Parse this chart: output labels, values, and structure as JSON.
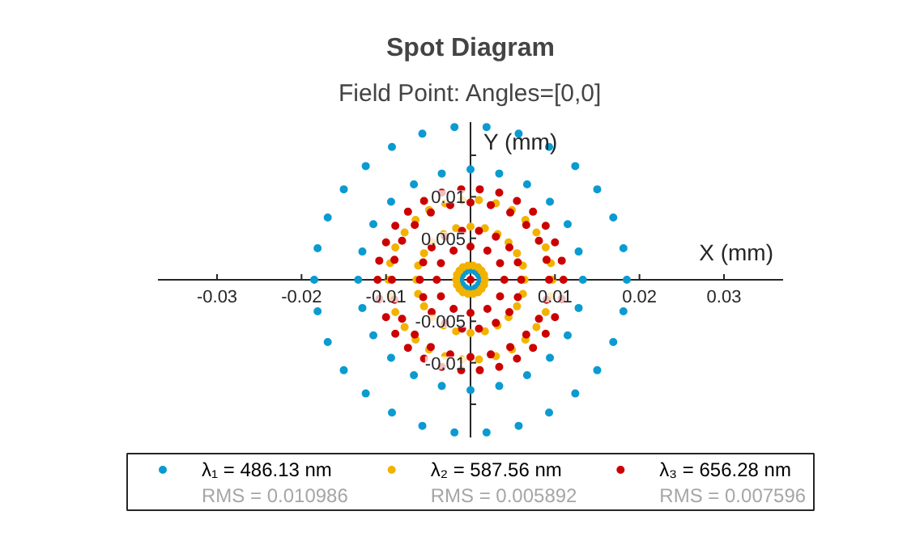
{
  "chart_data": {
    "type": "scatter",
    "title": "Spot Diagram",
    "subtitle": "Field Point: Angles=[0,0]",
    "xlabel": "X (mm)",
    "ylabel": "Y (mm)",
    "marker": "circle",
    "legend": "bottom",
    "xlim": [
      -0.037,
      0.037
    ],
    "ylim": [
      -0.019,
      0.019
    ],
    "xticks": [
      -0.03,
      -0.02,
      -0.01,
      0.01,
      0.02,
      0.03
    ],
    "yticks": [
      {
        "value": -0.015,
        "label": null
      },
      -0.01,
      -0.005,
      0.005,
      0.01,
      {
        "value": 0.015,
        "label": null
      }
    ],
    "annotations": [
      "RMS = 0.010986",
      "RMS = 0.005892",
      "RMS = 0.007596"
    ],
    "series": [
      {
        "name": "λ₁ = 486.13 nm",
        "color": "#0b9bd0",
        "x": [
          0.0185,
          0.0181,
          0.0169,
          0.015,
          0.0124,
          0.0093,
          0.0057,
          0.0019,
          -0.0019,
          -0.0057,
          -0.0093,
          -0.0124,
          -0.015,
          -0.0169,
          -0.0181,
          -0.0185,
          -0.0181,
          -0.0169,
          -0.015,
          -0.0124,
          -0.0093,
          -0.0057,
          -0.0019,
          0.0019,
          0.0057,
          0.0093,
          0.0124,
          0.015,
          0.0169,
          0.0181,
          0.0133,
          0.0128,
          0.0115,
          0.0094,
          0.0067,
          0.0034,
          0,
          -0.0034,
          -0.0067,
          -0.0094,
          -0.0115,
          -0.0128,
          -0.0133,
          -0.0128,
          -0.0115,
          -0.0094,
          -0.0067,
          -0.0034,
          0,
          0.0034,
          0.0067,
          0.0094,
          0.0115,
          0.0128,
          0.0012,
          0.001,
          0.0006,
          0,
          -0.0006,
          -0.001,
          -0.0012,
          -0.001,
          -0.0006,
          0,
          0.0006,
          0.001
        ],
        "values": [
          0,
          0.0038,
          0.0075,
          0.0109,
          0.0137,
          0.016,
          0.0176,
          0.0184,
          0.0184,
          0.0176,
          0.016,
          0.0137,
          0.0109,
          0.0075,
          0.0038,
          0,
          -0.0038,
          -0.0075,
          -0.0109,
          -0.0137,
          -0.016,
          -0.0176,
          -0.0184,
          -0.0184,
          -0.0176,
          -0.016,
          -0.0137,
          -0.0109,
          -0.0075,
          -0.0038,
          0,
          0.0034,
          0.0067,
          0.0094,
          0.0115,
          0.0128,
          0.0133,
          0.0128,
          0.0115,
          0.0094,
          0.0067,
          0.0034,
          0,
          -0.0034,
          -0.0067,
          -0.0094,
          -0.0115,
          -0.0128,
          -0.0133,
          -0.0128,
          -0.0115,
          -0.0094,
          -0.0067,
          -0.0034,
          0,
          0.0006,
          0.001,
          0.0012,
          0.001,
          0.0006,
          0,
          -0.0006,
          -0.001,
          -0.0012,
          -0.001,
          -0.0006
        ]
      },
      {
        "name": "λ₂ = 587.56 nm",
        "color": "#f2b300",
        "x": [
          0.0097,
          0.0095,
          0.0089,
          0.0078,
          0.0065,
          0.0049,
          0.003,
          0.001,
          -0.001,
          -0.003,
          -0.0049,
          -0.0065,
          -0.0078,
          -0.0089,
          -0.0095,
          -0.0097,
          -0.0095,
          -0.0089,
          -0.0078,
          -0.0065,
          -0.0049,
          -0.003,
          -0.001,
          0.001,
          0.003,
          0.0049,
          0.0065,
          0.0078,
          0.0089,
          0.0095,
          0.0064,
          0.0062,
          0.0055,
          0.0045,
          0.0032,
          0.0017,
          0,
          -0.0017,
          -0.0032,
          -0.0045,
          -0.0055,
          -0.0062,
          -0.0064,
          -0.0062,
          -0.0055,
          -0.0045,
          -0.0032,
          -0.0017,
          0,
          0.0017,
          0.0032,
          0.0045,
          0.0055,
          0.0062,
          0.0017,
          0.0016,
          0.0013,
          0.0009,
          0.0003,
          -0.0003,
          -0.0009,
          -0.0013,
          -0.0016,
          -0.0017,
          -0.0016,
          -0.0013,
          -0.0009,
          -0.0003,
          0.0003,
          0.0009,
          0.0013,
          0.0016
        ],
        "values": [
          0,
          0.002,
          0.0039,
          0.0057,
          0.0072,
          0.0084,
          0.0092,
          0.0096,
          0.0096,
          0.0092,
          0.0084,
          0.0072,
          0.0057,
          0.0039,
          0.002,
          0,
          -0.002,
          -0.0039,
          -0.0057,
          -0.0072,
          -0.0084,
          -0.0092,
          -0.0096,
          -0.0096,
          -0.0092,
          -0.0084,
          -0.0072,
          -0.0057,
          -0.0039,
          -0.002,
          0,
          0.0017,
          0.0032,
          0.0045,
          0.0055,
          0.0062,
          0.0064,
          0.0062,
          0.0055,
          0.0045,
          0.0032,
          0.0017,
          0,
          -0.0017,
          -0.0032,
          -0.0045,
          -0.0055,
          -0.0062,
          -0.0064,
          -0.0062,
          -0.0055,
          -0.0045,
          -0.0032,
          -0.0017,
          0,
          0.0006,
          0.0011,
          0.0015,
          0.0017,
          0.0017,
          0.0015,
          0.0011,
          0.0006,
          0,
          -0.0006,
          -0.0011,
          -0.0015,
          -0.0017,
          -0.0017,
          -0.0015,
          -0.0011,
          -0.0006
        ]
      },
      {
        "name": "λ₃ = 656.28 nm",
        "color": "#cc0000",
        "x": [
          0.011,
          0.0108,
          0.01,
          0.0089,
          0.0074,
          0.0055,
          0.0034,
          0.0011,
          -0.0011,
          -0.0034,
          -0.0055,
          -0.0074,
          -0.0089,
          -0.01,
          -0.0108,
          -0.011,
          -0.0108,
          -0.01,
          -0.0089,
          -0.0074,
          -0.0055,
          -0.0034,
          -0.0011,
          0.0011,
          0.0034,
          0.0055,
          0.0074,
          0.0089,
          0.01,
          0.0108,
          0.0093,
          0.009,
          0.0081,
          0.0066,
          0.0047,
          0.0024,
          0,
          -0.0024,
          -0.0047,
          -0.0066,
          -0.0081,
          -0.009,
          -0.0093,
          -0.009,
          -0.0081,
          -0.0066,
          -0.0047,
          -0.0024,
          0,
          0.0024,
          0.0047,
          0.0066,
          0.0081,
          0.009,
          0.006,
          0.0056,
          0.0046,
          0.003,
          0.001,
          -0.001,
          -0.003,
          -0.0046,
          -0.0056,
          -0.006,
          -0.0056,
          -0.0046,
          -0.003,
          -0.001,
          0.001,
          0.003,
          0.0046,
          0.0056,
          0.004,
          0.0035,
          0.002,
          0,
          -0.002,
          -0.0035,
          -0.004,
          -0.0035,
          -0.002,
          0,
          0.002,
          0.0035,
          0
        ],
        "values": [
          0,
          0.0023,
          0.0045,
          0.0065,
          0.0082,
          0.0095,
          0.0105,
          0.0109,
          0.0109,
          0.0105,
          0.0095,
          0.0082,
          0.0065,
          0.0045,
          0.0023,
          0,
          -0.0023,
          -0.0045,
          -0.0065,
          -0.0082,
          -0.0095,
          -0.0105,
          -0.0109,
          -0.0109,
          -0.0105,
          -0.0095,
          -0.0082,
          -0.0065,
          -0.0045,
          -0.0023,
          0,
          0.0024,
          0.0047,
          0.0066,
          0.0081,
          0.009,
          0.0093,
          0.009,
          0.0081,
          0.0066,
          0.0047,
          0.0024,
          0,
          -0.0024,
          -0.0047,
          -0.0066,
          -0.0081,
          -0.009,
          -0.0093,
          -0.009,
          -0.0081,
          -0.0066,
          -0.0047,
          -0.0024,
          0,
          0.0021,
          0.0039,
          0.0052,
          0.0059,
          0.0059,
          0.0052,
          0.0039,
          0.0021,
          0,
          -0.0021,
          -0.0039,
          -0.0052,
          -0.0059,
          -0.0059,
          -0.0052,
          -0.0039,
          -0.0021,
          0,
          0.002,
          0.0035,
          0.004,
          0.0035,
          0.002,
          0,
          -0.002,
          -0.0035,
          -0.004,
          -0.0035,
          -0.002,
          0
        ]
      }
    ]
  }
}
